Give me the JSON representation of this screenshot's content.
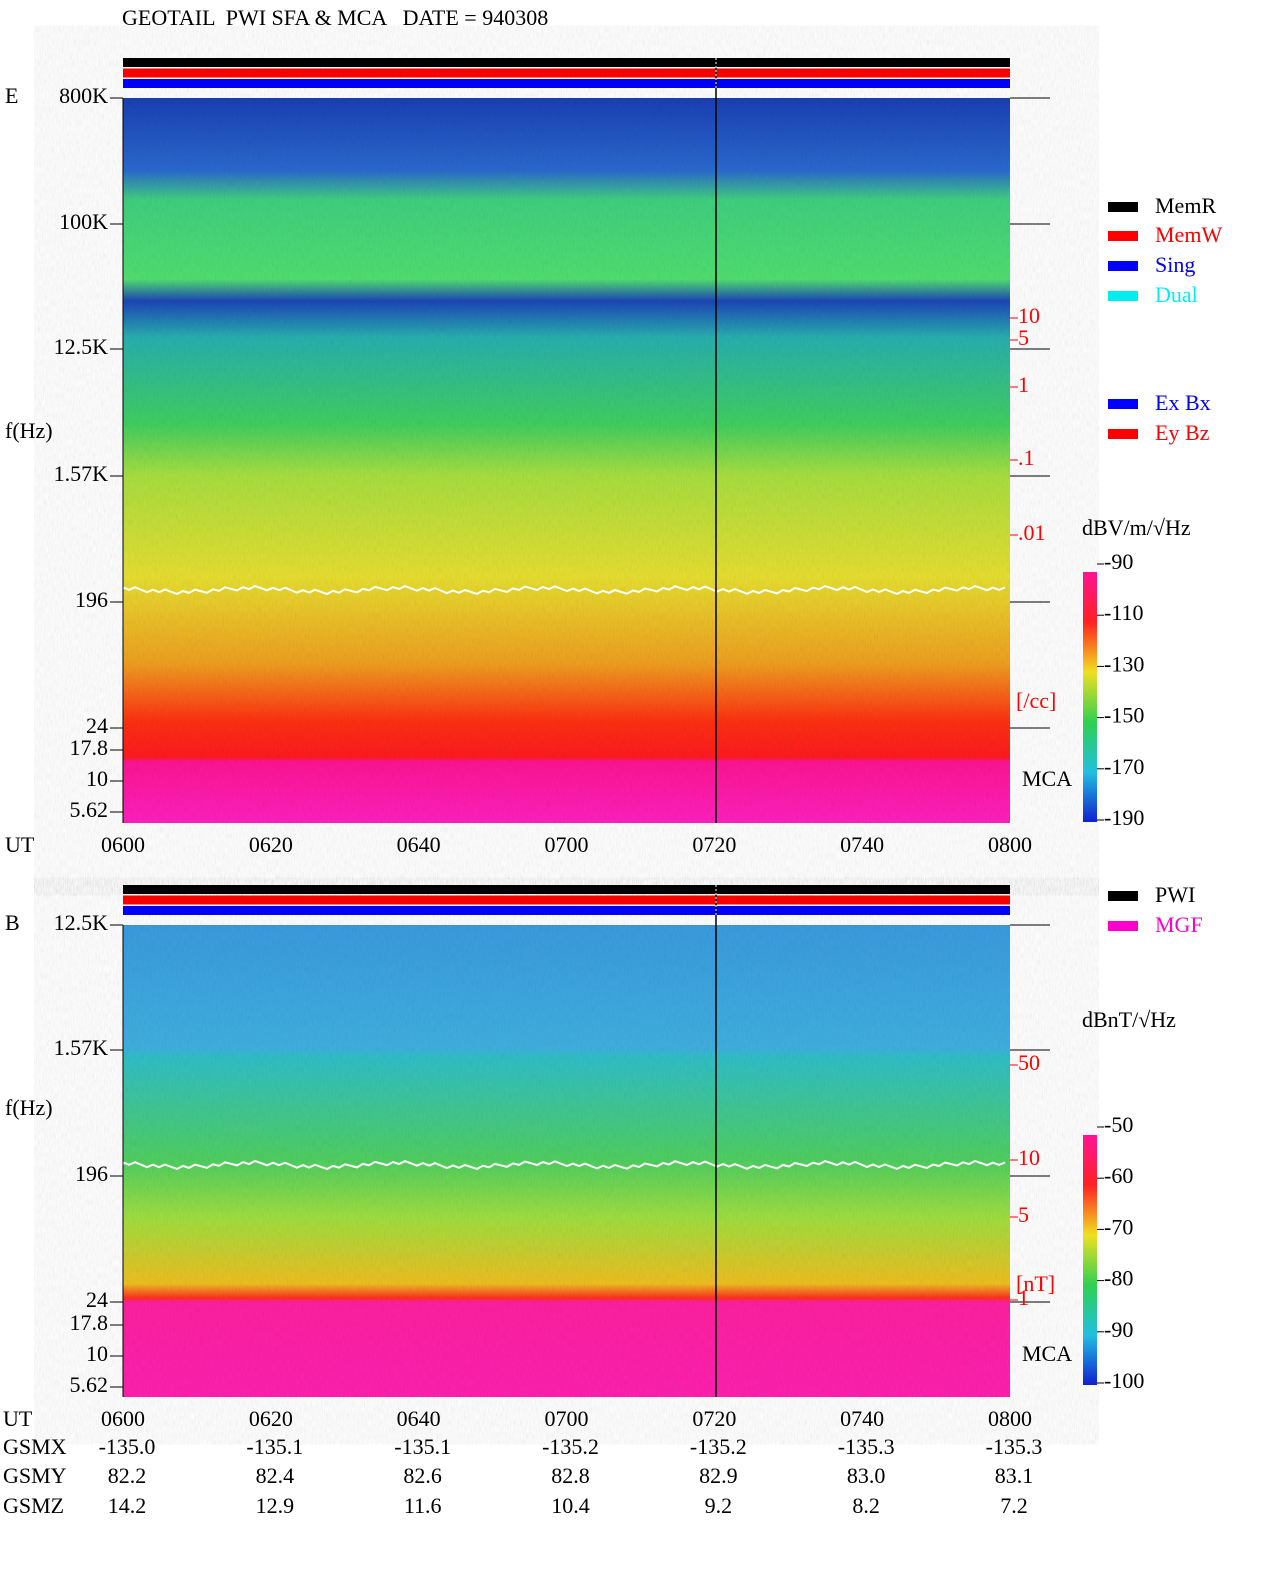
{
  "header": {
    "title": "GEOTAIL  PWI SFA & MCA   DATE = 940308"
  },
  "panels": [
    {
      "label": "E",
      "y_axis_title": "f(Hz)",
      "freq_labels": [
        "800K",
        "100K",
        "12.5K",
        "1.57K",
        "196",
        "24",
        "17.8",
        "10",
        "5.62"
      ],
      "density_labels": [
        "10",
        "5",
        "1",
        ".1",
        ".01"
      ],
      "density_unit": "[/cc]",
      "mca": "MCA",
      "time_title": "UT",
      "times": [
        "0600",
        "0620",
        "0640",
        "0700",
        "0720",
        "0740",
        "0800"
      ],
      "legend": [
        "MemR",
        "MemW",
        "Sing",
        "Dual",
        "Ex Bx",
        "Ey Bz"
      ],
      "colorbar_title": "dBV/m/√Hz",
      "colorbar_labels": [
        "-90",
        "-110",
        "-130",
        "-150",
        "-170",
        "-190"
      ]
    },
    {
      "label": "B",
      "y_axis_title": "f(Hz)",
      "freq_labels": [
        "12.5K",
        "1.57K",
        "196",
        "24",
        "17.8",
        "10",
        "5.62"
      ],
      "density_labels": [
        "50",
        "10",
        "5",
        "1"
      ],
      "density_unit": "[nT]",
      "mca": "MCA",
      "legend": [
        "PWI",
        "MGF"
      ],
      "colorbar_title": "dBnT/√Hz",
      "colorbar_labels": [
        "-50",
        "-60",
        "-70",
        "-80",
        "-90",
        "-100"
      ]
    }
  ],
  "orbit": {
    "rows": [
      {
        "name": "UT",
        "values": [
          "0600",
          "0620",
          "0640",
          "0700",
          "0720",
          "0740",
          "0800"
        ]
      },
      {
        "name": "GSMX",
        "values": [
          "-135.0",
          "-135.1",
          "-135.1",
          "-135.2",
          "-135.2",
          "-135.3",
          "-135.3"
        ]
      },
      {
        "name": "GSMY",
        "values": [
          "82.2",
          "82.4",
          "82.6",
          "82.8",
          "82.9",
          "83.0",
          "83.1"
        ]
      },
      {
        "name": "GSMZ",
        "values": [
          "14.2",
          "12.9",
          "11.6",
          "10.4",
          "9.2",
          "8.2",
          "7.2"
        ]
      }
    ]
  }
}
